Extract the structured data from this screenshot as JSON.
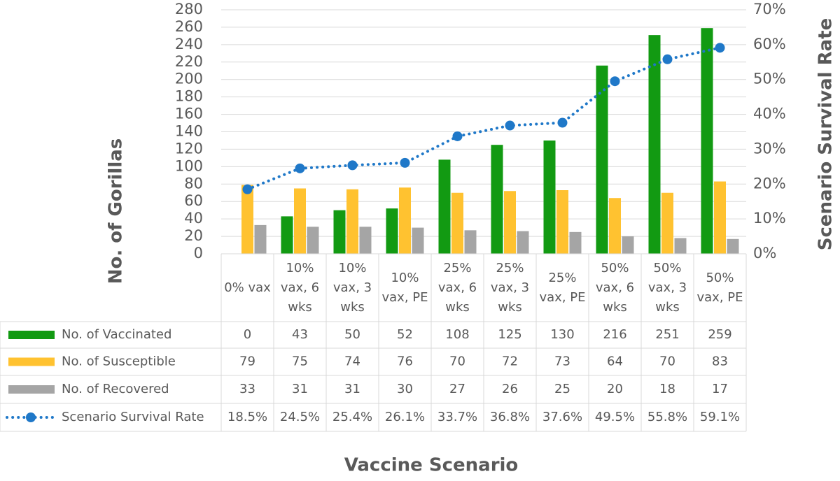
{
  "chart_data": {
    "type": "bar",
    "categories": [
      "0% vax",
      "10% vax, 6 wks",
      "10% vax, 3 wks",
      "10% vax, PE",
      "25% vax, 6 wks",
      "25% vax, 3 wks",
      "25% vax, PE",
      "50% vax, 6 wks",
      "50% vax, 3 wks",
      "50% vax, PE"
    ],
    "series": [
      {
        "name": "No. of Vaccinated",
        "type": "bar",
        "color": "#129a12",
        "values": [
          0,
          43,
          50,
          52,
          108,
          125,
          130,
          216,
          251,
          259
        ]
      },
      {
        "name": "No. of Susceptible",
        "type": "bar",
        "color": "#ffc230",
        "values": [
          79,
          75,
          74,
          76,
          70,
          72,
          73,
          64,
          70,
          83
        ]
      },
      {
        "name": "No. of Recovered",
        "type": "bar",
        "color": "#a5a5a5",
        "values": [
          33,
          31,
          31,
          30,
          27,
          26,
          25,
          20,
          18,
          17
        ]
      },
      {
        "name": "Scenario Survival Rate",
        "type": "line",
        "axis": "y2",
        "color": "#1f78c8",
        "values": [
          18.5,
          24.5,
          25.4,
          26.1,
          33.7,
          36.8,
          37.6,
          49.5,
          55.8,
          59.1
        ],
        "value_labels": [
          "18.5%",
          "24.5%",
          "25.4%",
          "26.1%",
          "33.7%",
          "36.8%",
          "37.6%",
          "49.5%",
          "55.8%",
          "59.1%"
        ]
      }
    ],
    "ylim": [
      0,
      280
    ],
    "yticks": [
      0,
      20,
      40,
      60,
      80,
      100,
      120,
      140,
      160,
      180,
      200,
      220,
      240,
      260,
      280
    ],
    "y2lim": [
      0,
      70
    ],
    "y2ticks": [
      {
        "value": 0,
        "label": "0%"
      },
      {
        "value": 10,
        "label": "10%"
      },
      {
        "value": 20,
        "label": "20%"
      },
      {
        "value": 30,
        "label": "30%"
      },
      {
        "value": 40,
        "label": "40%"
      },
      {
        "value": 50,
        "label": "50%"
      },
      {
        "value": 60,
        "label": "60%"
      },
      {
        "value": 70,
        "label": "70%"
      }
    ],
    "y_label": "No. of Gorillas",
    "y2_label": "Scenario Survival Rate",
    "x_label": "Vaccine Scenario",
    "grid": true
  }
}
